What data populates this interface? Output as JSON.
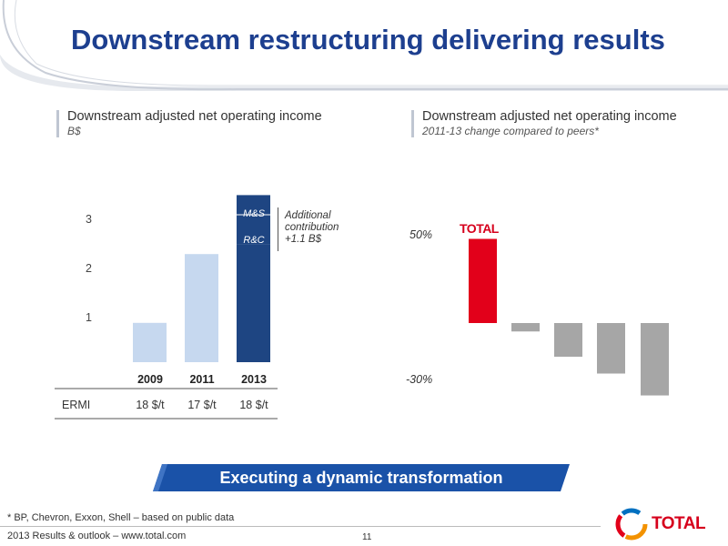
{
  "title": "Downstream restructuring delivering results",
  "left_panel": {
    "title": "Downstream adjusted net operating income",
    "subtitle": "B$",
    "ticks": [
      "3",
      "2",
      "1"
    ],
    "categories": [
      "2009",
      "2011",
      "2013"
    ],
    "segment_labels": [
      "M&S",
      "R&C"
    ],
    "annotation": [
      "Additional",
      "contribution",
      "+1.1 B$"
    ],
    "ermi_label": "ERMI",
    "ermi_values": [
      "18 $/t",
      "17 $/t",
      "18 $/t"
    ]
  },
  "right_panel": {
    "title": "Downstream adjusted net operating income",
    "subtitle": "2011-13 change compared to peers*",
    "tick_top": "50%",
    "tick_bottom": "-30%",
    "total_label": "TOTAL"
  },
  "banner": "Executing a dynamic transformation",
  "footnote": "* BP, Chevron, Exxon, Shell – based on public data",
  "footer": "2013 Results & outlook – www.total.com",
  "page_number": "11",
  "logo_text": "TOTAL",
  "colors": {
    "title": "#1d3f8f",
    "bar_light": "#c6d8ef",
    "bar_dark": "#1e4582",
    "total_red": "#e2001a",
    "peer_grey": "#a6a6a6",
    "banner": "#1a52a8"
  },
  "chart_data": [
    {
      "type": "bar",
      "title": "Downstream adjusted net operating income",
      "subtitle": "B$",
      "categories": [
        "2009",
        "2011",
        "2013"
      ],
      "series": [
        {
          "values": [
            0.8,
            2.2,
            2.4
          ]
        },
        {
          "name": "R&C",
          "values": [
            0,
            0,
            0.6
          ]
        },
        {
          "name": "M&S",
          "values": [
            0,
            0,
            0.4
          ]
        }
      ],
      "ylim": [
        0,
        3.5
      ],
      "yticks": [
        1,
        2,
        3
      ]
    },
    {
      "type": "bar",
      "title": "Downstream adjusted net operating income",
      "subtitle": "2011-13 change compared to peers*",
      "categories": [
        "TOTAL",
        "",
        "",
        "",
        ""
      ],
      "values": [
        50,
        -5,
        -20,
        -30,
        -43
      ],
      "ylim": [
        -45,
        55
      ],
      "yticks": [
        50,
        -30
      ]
    }
  ]
}
